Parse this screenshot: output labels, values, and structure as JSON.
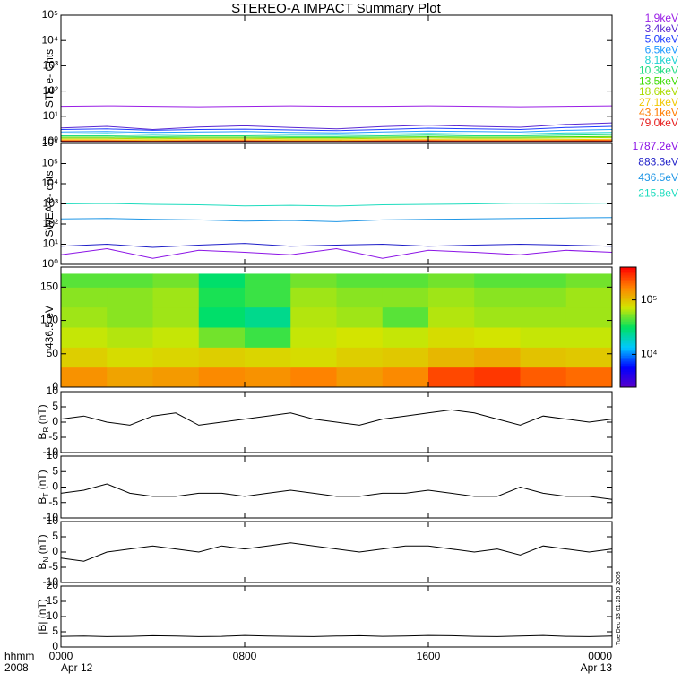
{
  "chart_data": [
    {
      "type": "line",
      "title": "STEREO-A IMPACT Summary Plot",
      "ylabel": "STE e- Cnts",
      "log_y": true,
      "legend": "right",
      "ylim": [
        1,
        100000
      ],
      "yticks": [
        {
          "value": 1,
          "label": "10⁰"
        },
        {
          "value": 10,
          "label": "10¹"
        },
        {
          "value": 100,
          "label": "10²"
        },
        {
          "value": 1000,
          "label": "10³"
        },
        {
          "value": 10000,
          "label": "10⁴"
        },
        {
          "value": 100000,
          "label": "10⁵"
        }
      ],
      "xlim": [
        0,
        24
      ],
      "xticks": [
        0,
        8,
        16,
        24
      ],
      "x": [
        0,
        2,
        4,
        6,
        8,
        10,
        12,
        14,
        16,
        18,
        20,
        22,
        24
      ],
      "series": [
        {
          "name": "1.9keV",
          "color": "#9a1ee6",
          "values": [
            25,
            26,
            25,
            24,
            25,
            26,
            25,
            25,
            26,
            25,
            24,
            25,
            26
          ]
        },
        {
          "name": "3.4keV",
          "color": "#5a28d2",
          "values": [
            3.5,
            4,
            3,
            3.8,
            4.2,
            3.6,
            3.2,
            3.9,
            4.5,
            4,
            3.7,
            4.8,
            5.5
          ]
        },
        {
          "name": "5.0keV",
          "color": "#1e3cff",
          "values": [
            3,
            3.2,
            2.8,
            3,
            3.1,
            2.9,
            2.7,
            3,
            3.4,
            3.2,
            3,
            3.6,
            4
          ]
        },
        {
          "name": "6.5keV",
          "color": "#1e9bff",
          "values": [
            2.4,
            2.5,
            2.3,
            2.4,
            2.5,
            2.3,
            2.2,
            2.4,
            2.6,
            2.5,
            2.4,
            2.8,
            3
          ]
        },
        {
          "name": "8.1keV",
          "color": "#1ed2d2",
          "values": [
            2,
            2.1,
            1.9,
            2,
            2,
            1.9,
            1.9,
            2,
            2.1,
            2,
            2,
            2.2,
            2.3
          ]
        },
        {
          "name": "10.3keV",
          "color": "#1edc82",
          "values": [
            1.7,
            1.7,
            1.6,
            1.7,
            1.7,
            1.6,
            1.6,
            1.7,
            1.8,
            1.7,
            1.7,
            1.8,
            1.9
          ]
        },
        {
          "name": "13.5keV",
          "color": "#3cdc00",
          "values": [
            1.5,
            1.5,
            1.45,
            1.5,
            1.5,
            1.45,
            1.45,
            1.5,
            1.55,
            1.5,
            1.5,
            1.55,
            1.6
          ]
        },
        {
          "name": "18.6keV",
          "color": "#aadc00",
          "values": [
            1.35,
            1.35,
            1.3,
            1.35,
            1.35,
            1.3,
            1.3,
            1.35,
            1.4,
            1.35,
            1.35,
            1.4,
            1.45
          ]
        },
        {
          "name": "27.1keV",
          "color": "#f0c800",
          "values": [
            1.2,
            1.2,
            1.18,
            1.2,
            1.2,
            1.18,
            1.18,
            1.2,
            1.22,
            1.2,
            1.2,
            1.22,
            1.25
          ]
        },
        {
          "name": "43.1keV",
          "color": "#ff7d00",
          "values": [
            1.1,
            1.1,
            1.08,
            1.1,
            1.1,
            1.08,
            1.08,
            1.1,
            1.12,
            1.1,
            1.1,
            1.12,
            1.14
          ]
        },
        {
          "name": "79.0keV",
          "color": "#e61e1e",
          "values": [
            1.05,
            1.05,
            1.03,
            1.05,
            1.05,
            1.03,
            1.03,
            1.05,
            1.06,
            1.05,
            1.05,
            1.06,
            1.07
          ]
        }
      ]
    },
    {
      "type": "line",
      "ylabel": "SWEA e- cnts",
      "log_y": true,
      "legend": "right",
      "ylim": [
        1,
        1000000
      ],
      "yticks": [
        {
          "value": 1,
          "label": "10⁰"
        },
        {
          "value": 10,
          "label": "10¹"
        },
        {
          "value": 100,
          "label": "10²"
        },
        {
          "value": 1000,
          "label": "10³"
        },
        {
          "value": 10000,
          "label": "10⁴"
        },
        {
          "value": 100000,
          "label": "10⁵"
        },
        {
          "value": 1000000,
          "label": "10⁶"
        }
      ],
      "xlim": [
        0,
        24
      ],
      "xticks": [
        0,
        8,
        16,
        24
      ],
      "x": [
        0,
        2,
        4,
        6,
        8,
        10,
        12,
        14,
        16,
        18,
        20,
        22,
        24
      ],
      "series": [
        {
          "name": "1787.2eV",
          "color": "#8c14e6",
          "values": [
            3,
            6,
            2,
            5,
            4,
            3,
            6,
            2,
            5,
            4,
            3,
            5,
            4
          ]
        },
        {
          "name": "883.3eV",
          "color": "#1e1ec8",
          "values": [
            8,
            10,
            7,
            9,
            11,
            8,
            9,
            10,
            8,
            9,
            10,
            9,
            8
          ]
        },
        {
          "name": "436.5eV",
          "color": "#1e96e6",
          "values": [
            180,
            190,
            170,
            160,
            140,
            150,
            130,
            160,
            170,
            180,
            190,
            200,
            210
          ]
        },
        {
          "name": "215.8eV",
          "color": "#1edcbe",
          "values": [
            1000,
            1050,
            950,
            900,
            800,
            850,
            780,
            900,
            950,
            1000,
            1100,
            1050,
            1100
          ]
        }
      ]
    },
    {
      "type": "heatmap",
      "ylabel": "436.5 eV",
      "ylim": [
        0,
        180
      ],
      "yticks": [
        0,
        50,
        100,
        150
      ],
      "xlim": [
        0,
        24
      ],
      "xticks": [
        0,
        8,
        16,
        24
      ],
      "xbins": [
        0,
        2,
        4,
        6,
        8,
        10,
        12,
        14,
        16,
        18,
        20,
        22,
        24
      ],
      "ybins": [
        0,
        30,
        60,
        90,
        120,
        150,
        170
      ],
      "z": [
        [
          150000,
          130000,
          140000,
          160000,
          150000,
          170000,
          140000,
          160000,
          250000,
          280000,
          220000,
          200000
        ],
        [
          90000,
          80000,
          85000,
          90000,
          85000,
          80000,
          90000,
          95000,
          110000,
          120000,
          100000,
          95000
        ],
        [
          70000,
          65000,
          70000,
          50000,
          40000,
          70000,
          75000,
          70000,
          80000,
          75000,
          70000,
          70000
        ],
        [
          60000,
          55000,
          60000,
          30000,
          25000,
          65000,
          60000,
          45000,
          65000,
          60000,
          60000,
          60000
        ],
        [
          55000,
          55000,
          60000,
          35000,
          40000,
          60000,
          55000,
          55000,
          60000,
          55000,
          55000,
          60000
        ],
        [
          45000,
          45000,
          50000,
          30000,
          40000,
          50000,
          45000,
          45000,
          50000,
          45000,
          45000,
          50000
        ]
      ],
      "colormap": [
        "#5a00c8",
        "#0000ff",
        "#00c8ff",
        "#00e060",
        "#d2e600",
        "#ff8200",
        "#ff0000"
      ],
      "clim": [
        2500,
        400000
      ],
      "log_c": true,
      "cticks": [
        {
          "value": 10000,
          "label": "10⁴"
        },
        {
          "value": 100000,
          "label": "10⁵"
        }
      ]
    },
    {
      "type": "line",
      "ylabel": "B",
      "ylabel_sub": "R",
      "ylabel_unit": " (nT)",
      "ylim": [
        -10,
        10
      ],
      "yticks": [
        -10,
        -5,
        0,
        5,
        10
      ],
      "xlim": [
        0,
        24
      ],
      "xticks": [
        0,
        8,
        16,
        24
      ],
      "x": [
        0,
        1,
        2,
        3,
        4,
        5,
        6,
        7,
        8,
        9,
        10,
        11,
        12,
        13,
        14,
        15,
        16,
        17,
        18,
        19,
        20,
        21,
        22,
        23,
        24
      ],
      "series": [
        {
          "color": "#000000",
          "values": [
            1,
            2,
            0,
            -1,
            2,
            3,
            -1,
            0,
            1,
            2,
            3,
            1,
            0,
            -1,
            1,
            2,
            3,
            4,
            3,
            1,
            -1,
            2,
            1,
            0,
            1
          ]
        }
      ]
    },
    {
      "type": "line",
      "ylabel": "B",
      "ylabel_sub": "T",
      "ylabel_unit": " (nT)",
      "ylim": [
        -10,
        10
      ],
      "yticks": [
        -10,
        -5,
        0,
        5,
        10
      ],
      "xlim": [
        0,
        24
      ],
      "xticks": [
        0,
        8,
        16,
        24
      ],
      "x": [
        0,
        1,
        2,
        3,
        4,
        5,
        6,
        7,
        8,
        9,
        10,
        11,
        12,
        13,
        14,
        15,
        16,
        17,
        18,
        19,
        20,
        21,
        22,
        23,
        24
      ],
      "series": [
        {
          "color": "#000000",
          "values": [
            -2,
            -1,
            1,
            -2,
            -3,
            -3,
            -2,
            -2,
            -3,
            -2,
            -1,
            -2,
            -3,
            -3,
            -2,
            -2,
            -1,
            -2,
            -3,
            -3,
            0,
            -2,
            -3,
            -3,
            -4
          ]
        }
      ]
    },
    {
      "type": "line",
      "ylabel": "B",
      "ylabel_sub": "N",
      "ylabel_unit": " (nT)",
      "ylim": [
        -10,
        10
      ],
      "yticks": [
        -10,
        -5,
        0,
        5,
        10
      ],
      "xlim": [
        0,
        24
      ],
      "xticks": [
        0,
        8,
        16,
        24
      ],
      "x": [
        0,
        1,
        2,
        3,
        4,
        5,
        6,
        7,
        8,
        9,
        10,
        11,
        12,
        13,
        14,
        15,
        16,
        17,
        18,
        19,
        20,
        21,
        22,
        23,
        24
      ],
      "series": [
        {
          "color": "#000000",
          "values": [
            -2,
            -3,
            0,
            1,
            2,
            1,
            0,
            2,
            1,
            2,
            3,
            2,
            1,
            0,
            1,
            2,
            2,
            1,
            0,
            1,
            -1,
            2,
            1,
            0,
            1
          ]
        }
      ]
    },
    {
      "type": "line",
      "ylabel": "|B| (nT)",
      "ylim": [
        0,
        20
      ],
      "yticks": [
        0,
        5,
        10,
        15,
        20
      ],
      "xlim": [
        0,
        24
      ],
      "xticks": [
        {
          "value": 0,
          "label": "0000"
        },
        {
          "value": 8,
          "label": "0800"
        },
        {
          "value": 16,
          "label": "1600"
        },
        {
          "value": 24,
          "label": "0000"
        }
      ],
      "date_labels": [
        "Apr 12",
        "Apr 13"
      ],
      "xlabel_lines": [
        "hhmm",
        "2008"
      ],
      "annotation": "Tue Dec 13 01:25:10 2008",
      "x": [
        0,
        1,
        2,
        3,
        4,
        5,
        6,
        7,
        8,
        9,
        10,
        11,
        12,
        13,
        14,
        15,
        16,
        17,
        18,
        19,
        20,
        21,
        22,
        23,
        24
      ],
      "series": [
        {
          "color": "#000000",
          "values": [
            3.5,
            3.6,
            3.4,
            3.5,
            3.7,
            3.6,
            3.4,
            3.5,
            3.8,
            3.6,
            3.5,
            3.4,
            3.6,
            3.7,
            3.5,
            3.6,
            3.8,
            3.7,
            3.5,
            3.4,
            3.6,
            3.8,
            3.5,
            3.4,
            3.6
          ]
        }
      ]
    }
  ]
}
